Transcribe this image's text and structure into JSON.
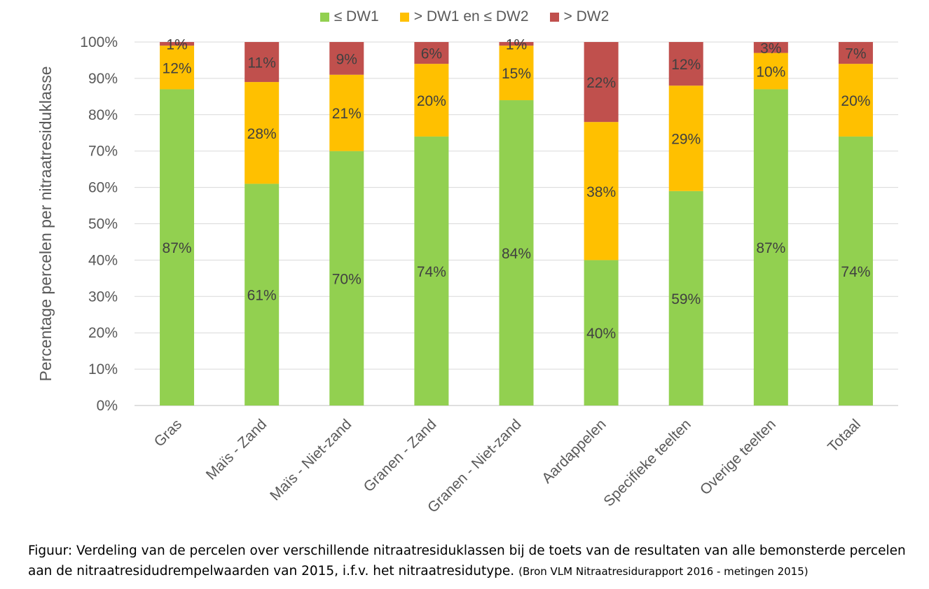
{
  "chart_data": {
    "type": "bar",
    "stacked": true,
    "ylabel": "Percentage percelen per nitraatresiduklasse",
    "xlabel": "",
    "ylim": [
      0,
      100
    ],
    "y_ticks": [
      "0%",
      "10%",
      "20%",
      "30%",
      "40%",
      "50%",
      "60%",
      "70%",
      "80%",
      "90%",
      "100%"
    ],
    "grid": true,
    "legend_position": "top-center",
    "categories": [
      "Gras",
      "Maïs - Zand",
      "Maïs - Niet-zand",
      "Granen - Zand",
      "Granen - Niet-zand",
      "Aardappelen",
      "Specifieke teelten",
      "Overige teelten",
      "Totaal"
    ],
    "series": [
      {
        "name": "≤ DW1",
        "color": "#92d050",
        "values": [
          87,
          61,
          70,
          74,
          84,
          40,
          59,
          87,
          74
        ],
        "labels": [
          "87%",
          "61%",
          "70%",
          "74%",
          "84%",
          "40%",
          "59%",
          "87%",
          "74%"
        ]
      },
      {
        "name": "> DW1 en ≤ DW2",
        "color": "#ffc000",
        "values": [
          12,
          28,
          21,
          20,
          15,
          38,
          29,
          10,
          20
        ],
        "labels": [
          "12%",
          "28%",
          "21%",
          "20%",
          "15%",
          "38%",
          "29%",
          "10%",
          "20%"
        ]
      },
      {
        "name": "> DW2",
        "color": "#c0504d",
        "values": [
          1,
          11,
          9,
          6,
          1,
          22,
          12,
          3,
          7
        ],
        "labels": [
          "1%",
          "11%",
          "9%",
          "6%",
          "1%",
          "22%",
          "12%",
          "3%",
          "7%"
        ]
      }
    ]
  },
  "caption": {
    "main": "Figuur: Verdeling van de percelen over verschillende nitraatresiduklassen bij de toets van de resultaten van alle bemonsterde percelen aan de nitraatresidudrempelwaarden van 2015, i.f.v. het nitraatresidutype.",
    "source": "(Bron VLM Nitraatresidurapport 2016 - metingen 2015)"
  }
}
